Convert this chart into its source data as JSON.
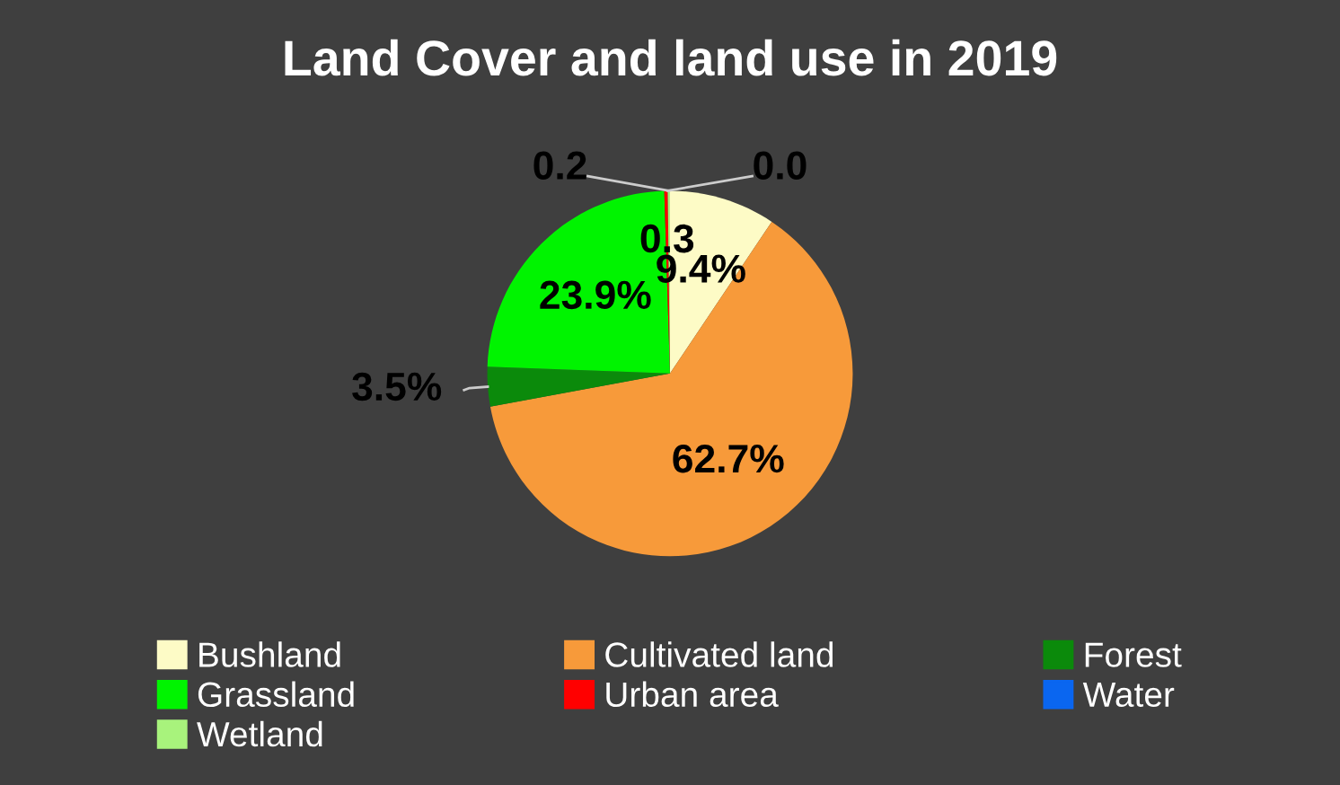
{
  "chart_data": {
    "type": "pie",
    "title": "Land Cover and land use in 2019",
    "categories": [
      "Bushland",
      "Cultivated land",
      "Forest",
      "Grassland",
      "Urban area",
      "Water",
      "Wetland"
    ],
    "values": [
      9.4,
      62.7,
      3.5,
      23.9,
      0.3,
      0.0,
      0.2
    ],
    "colors": [
      "#fdfbc6",
      "#f79a3a",
      "#0b8a0b",
      "#00f400",
      "#ff0000",
      "#0a66f0",
      "#a8f37c"
    ],
    "value_labels": [
      "9.4%",
      "62.7%",
      "3.5%",
      "23.9%",
      "0.3",
      "0.0",
      "0.2"
    ],
    "legend": "bottom"
  }
}
